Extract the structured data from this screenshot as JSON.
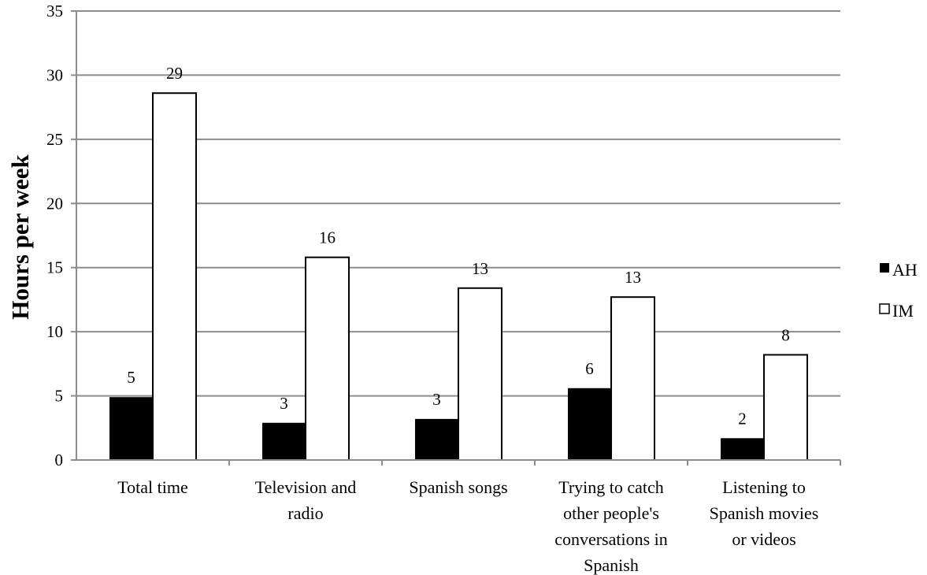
{
  "chart_data": {
    "type": "bar",
    "title": "",
    "xlabel": "",
    "ylabel": "Hours per week",
    "ylim": [
      0,
      35
    ],
    "yticks": [
      "0",
      "5",
      "10",
      "15",
      "20",
      "25",
      "30",
      "35"
    ],
    "grid": true,
    "legend_position": "right",
    "categories": [
      [
        "Total time"
      ],
      [
        "Television and",
        "radio"
      ],
      [
        "Spanish songs"
      ],
      [
        "Trying to catch",
        "other people's",
        "conversations in",
        "Spanish"
      ],
      [
        "Listening to",
        "Spanish movies",
        "or videos"
      ]
    ],
    "series": [
      {
        "name": "AH",
        "color": "#000000",
        "values": [
          4.9,
          2.9,
          3.2,
          5.6,
          1.7
        ],
        "labels": [
          "5",
          "3",
          "3",
          "6",
          "2"
        ]
      },
      {
        "name": "IM",
        "color": "#ffffff",
        "values": [
          28.6,
          15.8,
          13.4,
          12.7,
          8.2
        ],
        "labels": [
          "29",
          "16",
          "13",
          "13",
          "8"
        ]
      }
    ]
  }
}
